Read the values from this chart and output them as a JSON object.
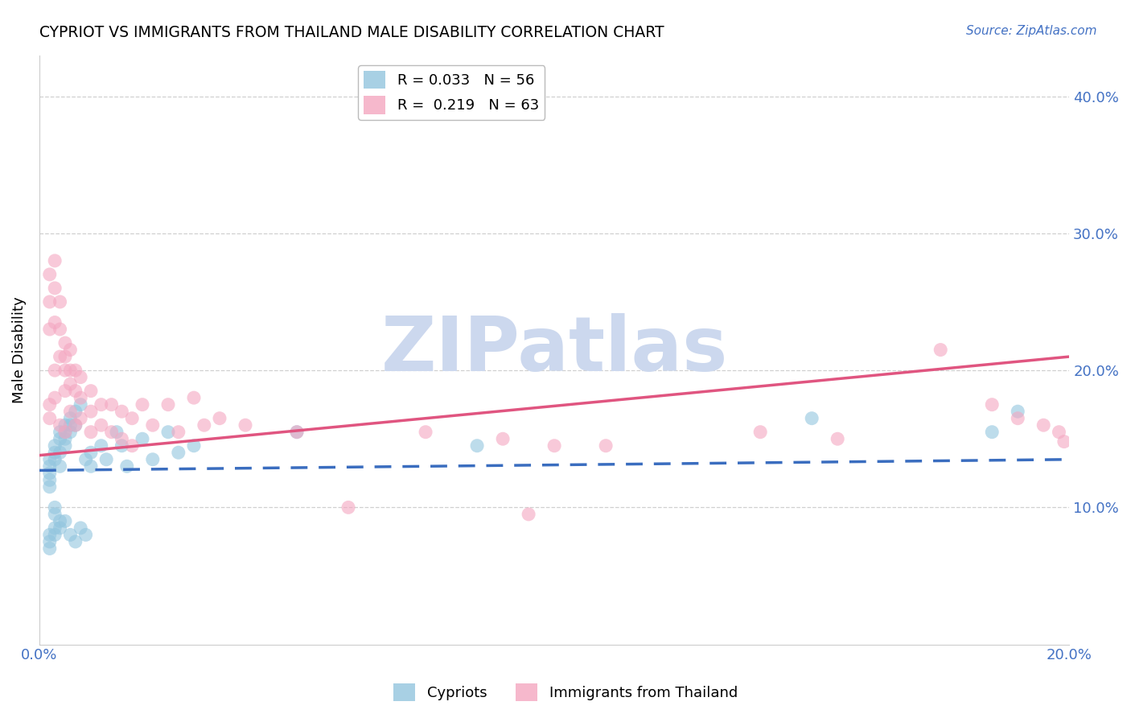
{
  "title": "CYPRIOT VS IMMIGRANTS FROM THAILAND MALE DISABILITY CORRELATION CHART",
  "source": "Source: ZipAtlas.com",
  "ylabel": "Male Disability",
  "xlim": [
    0.0,
    0.2
  ],
  "ylim": [
    0.0,
    0.43
  ],
  "yticks": [
    0.1,
    0.2,
    0.3,
    0.4
  ],
  "xticks": [
    0.0,
    0.2
  ],
  "xtick_labels": [
    "0.0%",
    "20.0%"
  ],
  "ytick_labels": [
    "10.0%",
    "20.0%",
    "30.0%",
    "40.0%"
  ],
  "series1_name": "Cypriots",
  "series2_name": "Immigrants from Thailand",
  "series1_color": "#92c5de",
  "series2_color": "#f4a6c0",
  "series1_line_color": "#3a6dbf",
  "series2_line_color": "#e05580",
  "watermark": "ZIPatlas",
  "watermark_color": "#ccd8ee",
  "cypriot_x": [
    0.002,
    0.002,
    0.002,
    0.002,
    0.002,
    0.002,
    0.002,
    0.002,
    0.003,
    0.003,
    0.003,
    0.003,
    0.003,
    0.003,
    0.003,
    0.004,
    0.004,
    0.004,
    0.004,
    0.004,
    0.004,
    0.005,
    0.005,
    0.005,
    0.005,
    0.005,
    0.006,
    0.006,
    0.006,
    0.006,
    0.007,
    0.007,
    0.007,
    0.008,
    0.008,
    0.009,
    0.009,
    0.01,
    0.01,
    0.012,
    0.013,
    0.015,
    0.016,
    0.017,
    0.02,
    0.022,
    0.025,
    0.027,
    0.03,
    0.05,
    0.085,
    0.15,
    0.185,
    0.19
  ],
  "cypriot_y": [
    0.135,
    0.13,
    0.125,
    0.12,
    0.115,
    0.08,
    0.075,
    0.07,
    0.145,
    0.14,
    0.135,
    0.1,
    0.095,
    0.085,
    0.08,
    0.155,
    0.15,
    0.14,
    0.13,
    0.09,
    0.085,
    0.16,
    0.155,
    0.15,
    0.145,
    0.09,
    0.165,
    0.16,
    0.155,
    0.08,
    0.17,
    0.16,
    0.075,
    0.175,
    0.085,
    0.135,
    0.08,
    0.14,
    0.13,
    0.145,
    0.135,
    0.155,
    0.145,
    0.13,
    0.15,
    0.135,
    0.155,
    0.14,
    0.145,
    0.155,
    0.145,
    0.165,
    0.155,
    0.17
  ],
  "thailand_x": [
    0.002,
    0.002,
    0.002,
    0.002,
    0.002,
    0.003,
    0.003,
    0.003,
    0.003,
    0.003,
    0.004,
    0.004,
    0.004,
    0.004,
    0.005,
    0.005,
    0.005,
    0.005,
    0.005,
    0.006,
    0.006,
    0.006,
    0.006,
    0.007,
    0.007,
    0.007,
    0.008,
    0.008,
    0.008,
    0.01,
    0.01,
    0.01,
    0.012,
    0.012,
    0.014,
    0.014,
    0.016,
    0.016,
    0.018,
    0.018,
    0.02,
    0.022,
    0.025,
    0.027,
    0.03,
    0.032,
    0.035,
    0.04,
    0.05,
    0.06,
    0.075,
    0.09,
    0.095,
    0.1,
    0.11,
    0.14,
    0.155,
    0.175,
    0.185,
    0.19,
    0.195,
    0.198,
    0.199
  ],
  "thailand_y": [
    0.27,
    0.25,
    0.23,
    0.175,
    0.165,
    0.28,
    0.26,
    0.235,
    0.2,
    0.18,
    0.25,
    0.23,
    0.21,
    0.16,
    0.22,
    0.21,
    0.2,
    0.185,
    0.155,
    0.215,
    0.2,
    0.19,
    0.17,
    0.2,
    0.185,
    0.16,
    0.195,
    0.18,
    0.165,
    0.185,
    0.17,
    0.155,
    0.175,
    0.16,
    0.175,
    0.155,
    0.17,
    0.15,
    0.165,
    0.145,
    0.175,
    0.16,
    0.175,
    0.155,
    0.18,
    0.16,
    0.165,
    0.16,
    0.155,
    0.1,
    0.155,
    0.15,
    0.095,
    0.145,
    0.145,
    0.155,
    0.15,
    0.215,
    0.175,
    0.165,
    0.16,
    0.155,
    0.148
  ],
  "cy_trend_x0": 0.0,
  "cy_trend_y0": 0.127,
  "cy_trend_x1": 0.2,
  "cy_trend_y1": 0.135,
  "th_trend_x0": 0.0,
  "th_trend_y0": 0.138,
  "th_trend_x1": 0.2,
  "th_trend_y1": 0.21
}
